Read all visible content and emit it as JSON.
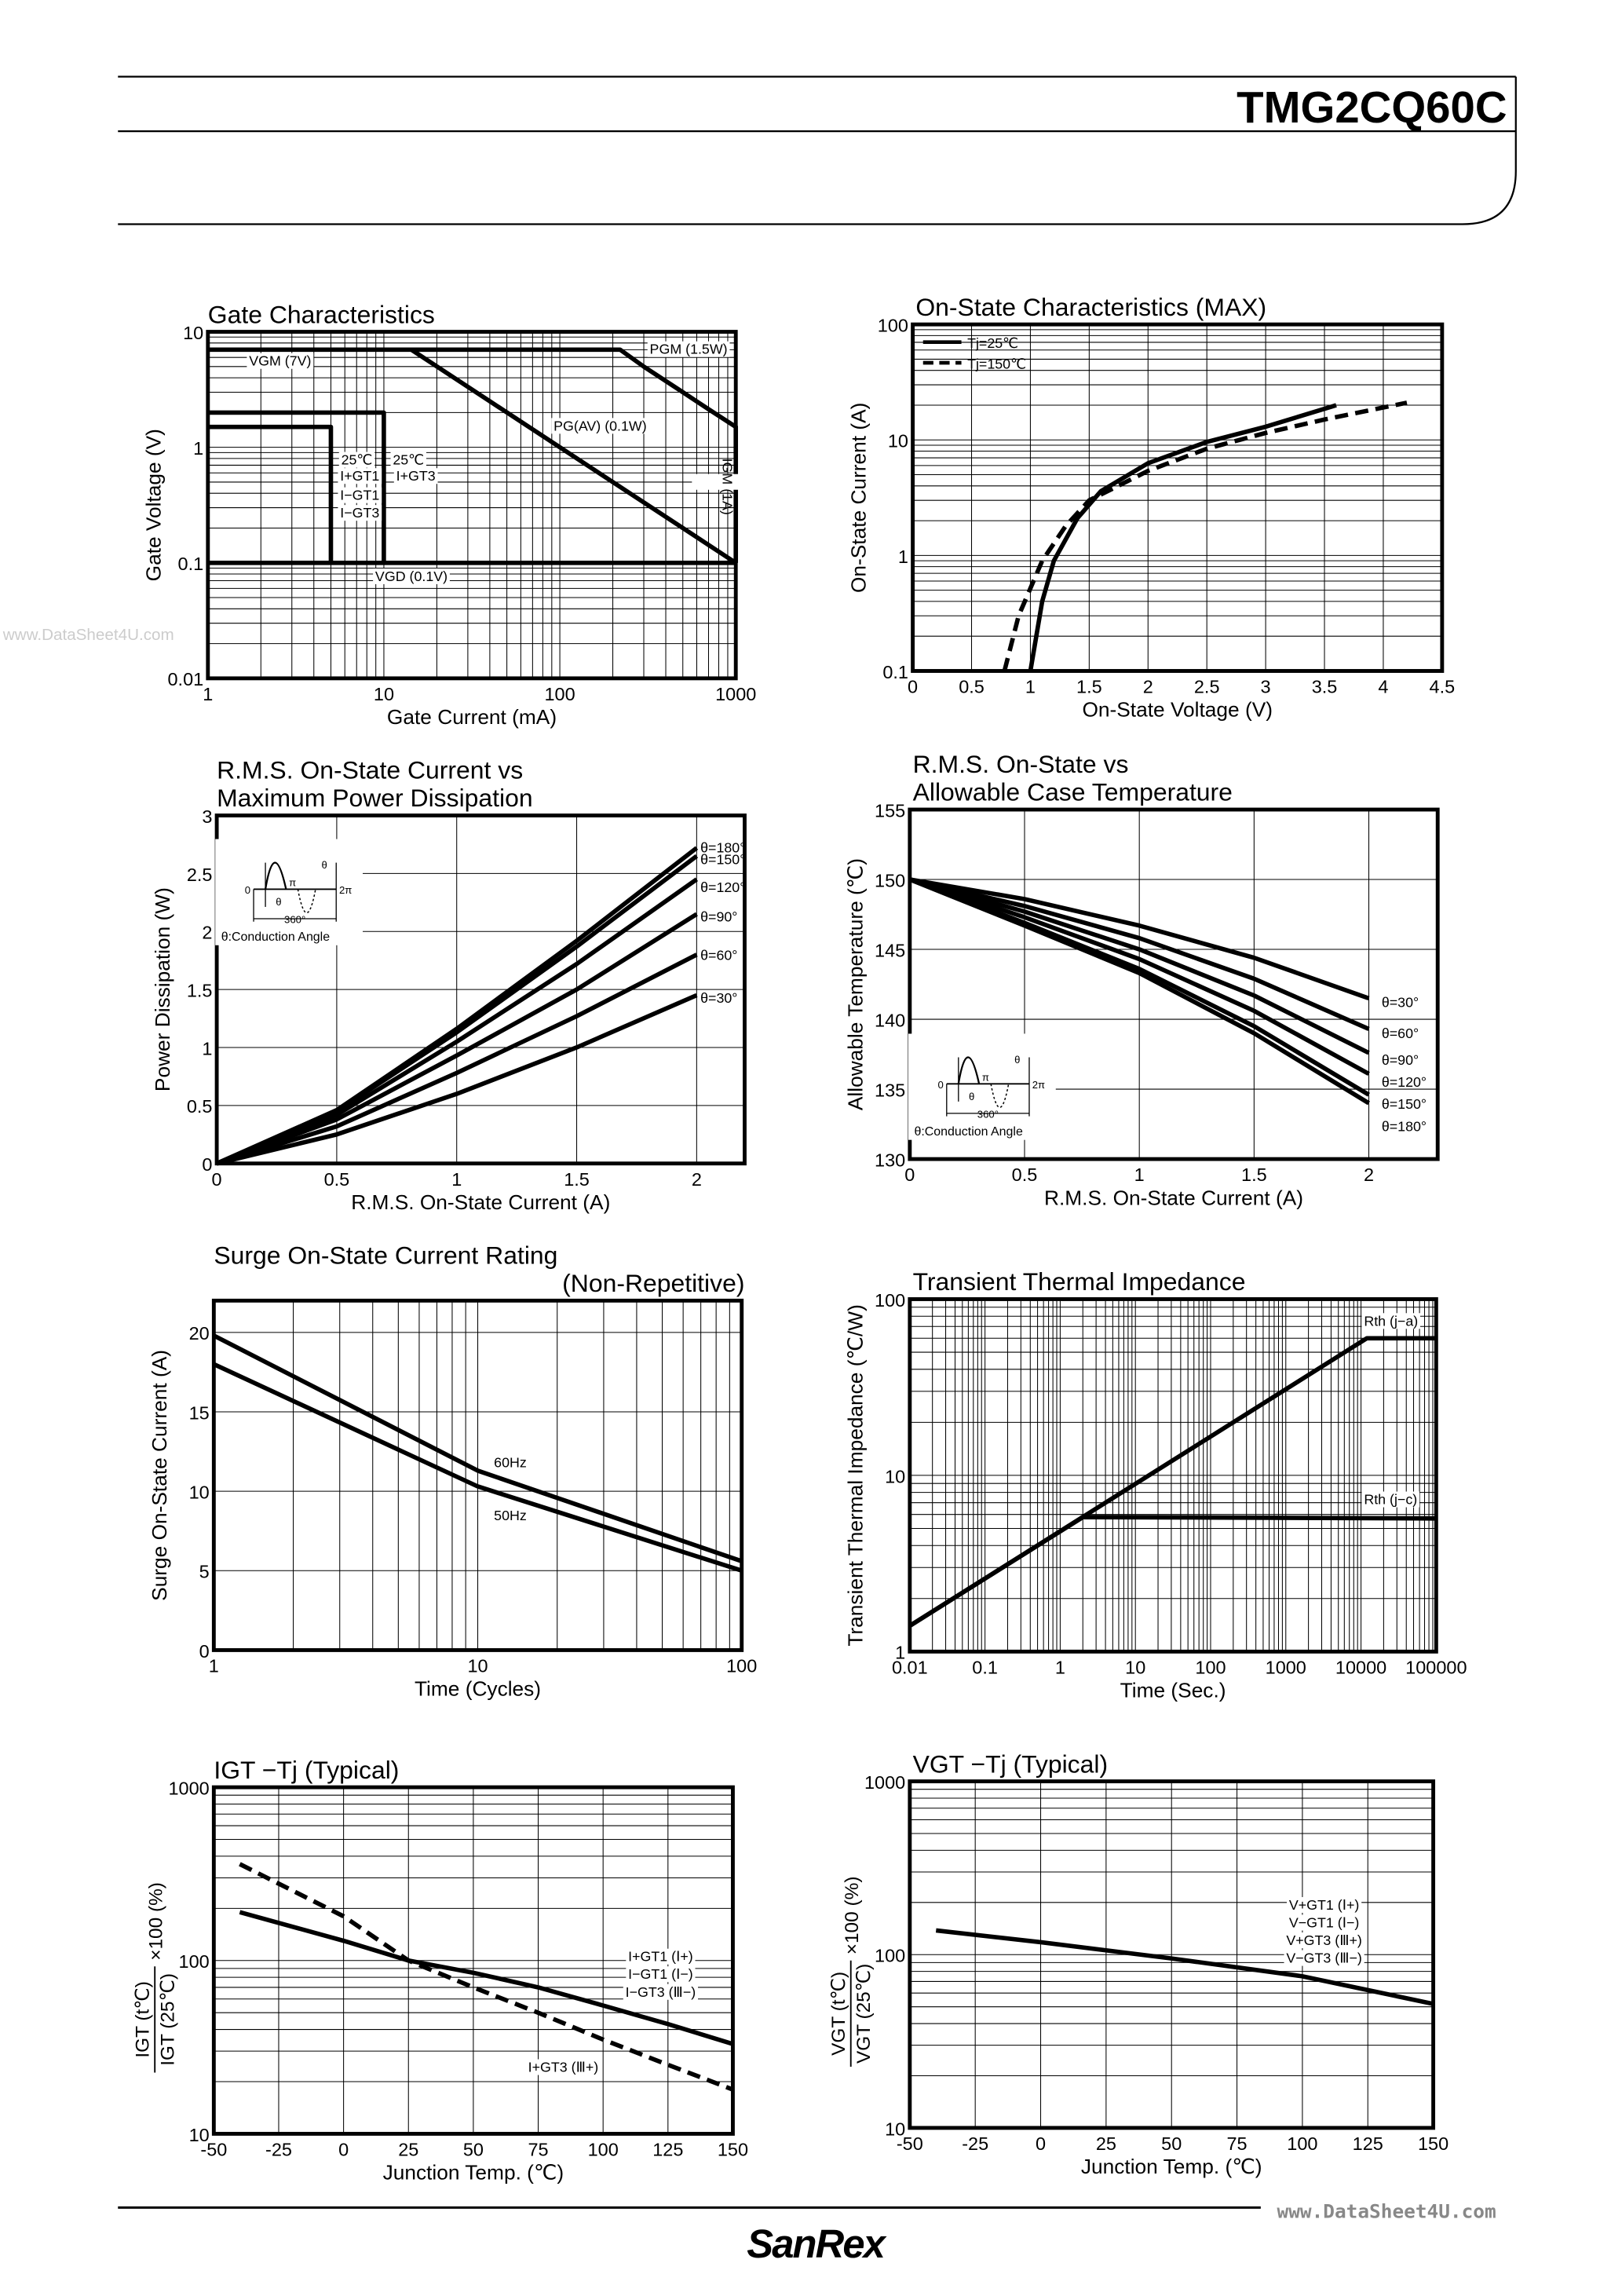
{
  "header": {
    "part_number": "TMG2CQ60C"
  },
  "footer": {
    "brand": "SanRex"
  },
  "watermarks": [
    "www.DataSheet4U.com",
    "www.DataSheet4U.com"
  ],
  "chart_data": [
    {
      "type": "line",
      "title": [
        "Gate Characteristics"
      ],
      "xlabel": "Gate Current (mA)",
      "ylabel": "Gate Voltage (V)",
      "xscale": "log",
      "yscale": "log",
      "xlim": [
        1,
        1000
      ],
      "ylim": [
        0.01,
        10
      ],
      "xticks": [
        "1",
        "10",
        "100",
        "1000"
      ],
      "yticks": [
        "0.01",
        "0.1",
        "1",
        "10"
      ],
      "grid": true,
      "series": [
        {
          "label": "VGM (7V) / PGM (1.5W) / IGM (1A)",
          "style": "solid",
          "points": [
            [
              1,
              7
            ],
            [
              220,
              7
            ],
            [
              300,
              5
            ],
            [
              500,
              3
            ],
            [
              700,
              2.14
            ],
            [
              1000,
              1.5
            ],
            [
              1000,
              0.1
            ]
          ]
        },
        {
          "label": "PG(AV) (0.1W)",
          "style": "solid",
          "points": [
            [
              14.3,
              7
            ],
            [
              1000,
              0.1
            ]
          ]
        },
        {
          "label": "VGD (0.1V)",
          "style": "solid",
          "points": [
            [
              1,
              0.1
            ],
            [
              1000,
              0.1
            ]
          ]
        },
        {
          "label": "I+GT1 / I-GT1 / I-GT3 25°C",
          "style": "solid",
          "points": [
            [
              1,
              1.5
            ],
            [
              5,
              1.5
            ],
            [
              5,
              0.1
            ]
          ]
        },
        {
          "label": "I+GT3 25°C",
          "style": "solid",
          "points": [
            [
              1,
              2
            ],
            [
              10,
              2
            ],
            [
              10,
              0.1
            ]
          ]
        }
      ],
      "annotations": [
        "VGM (7V)",
        "PGM (1.5W)",
        "PG(AV) (0.1W)",
        "IGM (1A)",
        "25℃",
        "25℃",
        "I+GT1",
        "I−GT1",
        "I−GT3",
        "I+GT3",
        "VGD (0.1V)"
      ]
    },
    {
      "type": "line",
      "title": [
        "On-State Characteristics (MAX)"
      ],
      "xlabel": "On-State Voltage (V)",
      "ylabel": "On-State Current (A)",
      "xscale": "linear",
      "yscale": "log",
      "xlim": [
        0,
        4.5
      ],
      "ylim": [
        0.1,
        100
      ],
      "xticks": [
        "0",
        "0.5",
        "1",
        "1.5",
        "2",
        "2.5",
        "3",
        "3.5",
        "4",
        "4.5"
      ],
      "yticks": [
        "0.1",
        "1",
        "10",
        "100"
      ],
      "xgrid": 0.5,
      "grid": true,
      "legend": "top-left",
      "series": [
        {
          "name": "Tj=25℃",
          "style": "solid",
          "points": [
            [
              1.0,
              0.1
            ],
            [
              1.1,
              0.4
            ],
            [
              1.2,
              0.9
            ],
            [
              1.4,
              2.1
            ],
            [
              1.6,
              3.6
            ],
            [
              2.0,
              6.3
            ],
            [
              2.5,
              9.6
            ],
            [
              3.0,
              13
            ],
            [
              3.6,
              20
            ]
          ]
        },
        {
          "name": "Tj=150℃",
          "style": "dashed",
          "points": [
            [
              0.78,
              0.1
            ],
            [
              0.9,
              0.3
            ],
            [
              1.1,
              0.9
            ],
            [
              1.3,
              1.8
            ],
            [
              1.5,
              3
            ],
            [
              2.0,
              5.4
            ],
            [
              2.5,
              8.4
            ],
            [
              3.0,
              11.5
            ],
            [
              3.5,
              15
            ],
            [
              4.2,
              21
            ]
          ]
        }
      ],
      "annotations": []
    },
    {
      "type": "line",
      "title": [
        "R.M.S. On-State Current vs",
        "Maximum Power Dissipation"
      ],
      "xlabel": "R.M.S. On-State Current (A)",
      "ylabel": "Power Dissipation (W)",
      "xscale": "linear",
      "yscale": "linear",
      "xlim": [
        0,
        2.2
      ],
      "ylim": [
        0,
        3
      ],
      "xticks": [
        "0",
        "0.5",
        "1",
        "1.5",
        "2"
      ],
      "yticks": [
        "0",
        "0.5",
        "1",
        "1.5",
        "2",
        "2.5",
        "3"
      ],
      "xgrid": 0.5,
      "ygrid": 0.5,
      "grid": true,
      "series": [
        {
          "name": "θ=180°",
          "style": "solid",
          "points": [
            [
              0,
              0
            ],
            [
              0.5,
              0.46
            ],
            [
              1,
              1.16
            ],
            [
              1.5,
              1.92
            ],
            [
              2,
              2.72
            ]
          ]
        },
        {
          "name": "θ=150°",
          "style": "solid",
          "points": [
            [
              0,
              0
            ],
            [
              0.5,
              0.45
            ],
            [
              1,
              1.13
            ],
            [
              1.5,
              1.87
            ],
            [
              2,
              2.65
            ]
          ]
        },
        {
          "name": "θ=120°",
          "style": "solid",
          "points": [
            [
              0,
              0
            ],
            [
              0.5,
              0.42
            ],
            [
              1,
              1.05
            ],
            [
              1.5,
              1.72
            ],
            [
              2,
              2.45
            ]
          ]
        },
        {
          "name": "θ=90°",
          "style": "solid",
          "points": [
            [
              0,
              0
            ],
            [
              0.5,
              0.38
            ],
            [
              1,
              0.93
            ],
            [
              1.5,
              1.5
            ],
            [
              2,
              2.15
            ]
          ]
        },
        {
          "name": "θ=60°",
          "style": "solid",
          "points": [
            [
              0,
              0
            ],
            [
              0.5,
              0.32
            ],
            [
              1,
              0.78
            ],
            [
              1.5,
              1.27
            ],
            [
              2,
              1.8
            ]
          ]
        },
        {
          "name": "θ=30°",
          "style": "solid",
          "points": [
            [
              0,
              0
            ],
            [
              0.5,
              0.25
            ],
            [
              1,
              0.6
            ],
            [
              1.5,
              1.0
            ],
            [
              2,
              1.45
            ]
          ]
        }
      ],
      "inset": {
        "caption": "θ:Conduction Angle",
        "period": "360°",
        "zero": "0",
        "pi": "π",
        "two_pi": "2π",
        "theta": "θ"
      },
      "annotations": []
    },
    {
      "type": "line",
      "title": [
        "R.M.S. On-State vs",
        "Allowable Case Temperature"
      ],
      "xlabel": "R.M.S. On-State Current (A)",
      "ylabel": "Allowable Temperature (℃)",
      "xscale": "linear",
      "yscale": "linear",
      "xlim": [
        0,
        2.3
      ],
      "ylim": [
        130,
        155
      ],
      "xticks": [
        "0",
        "0.5",
        "1",
        "1.5",
        "2"
      ],
      "yticks": [
        "130",
        "135",
        "140",
        "145",
        "150",
        "155"
      ],
      "xgrid": 0.5,
      "ygrid": 5,
      "grid": true,
      "series": [
        {
          "name": "θ=30°",
          "style": "solid",
          "points": [
            [
              0,
              150
            ],
            [
              0.5,
              148.6
            ],
            [
              1,
              146.7
            ],
            [
              1.5,
              144.4
            ],
            [
              2,
              141.5
            ]
          ]
        },
        {
          "name": "θ=60°",
          "style": "solid",
          "points": [
            [
              0,
              150
            ],
            [
              0.5,
              148.1
            ],
            [
              1,
              145.8
            ],
            [
              1.5,
              142.9
            ],
            [
              2,
              139.3
            ]
          ]
        },
        {
          "name": "θ=90°",
          "style": "solid",
          "points": [
            [
              0,
              150
            ],
            [
              0.5,
              147.7
            ],
            [
              1,
              145.0
            ],
            [
              1.5,
              141.7
            ],
            [
              2,
              137.6
            ]
          ]
        },
        {
          "name": "θ=120°",
          "style": "solid",
          "points": [
            [
              0,
              150
            ],
            [
              0.5,
              147.3
            ],
            [
              1,
              144.3
            ],
            [
              1.5,
              140.6
            ],
            [
              2,
              136.1
            ]
          ]
        },
        {
          "name": "θ=150°",
          "style": "solid",
          "points": [
            [
              0,
              150
            ],
            [
              0.5,
              146.9
            ],
            [
              1,
              143.6
            ],
            [
              1.5,
              139.5
            ],
            [
              2,
              134.6
            ]
          ]
        },
        {
          "name": "θ=180°",
          "style": "solid",
          "points": [
            [
              0,
              150
            ],
            [
              0.5,
              146.7
            ],
            [
              1,
              143.3
            ],
            [
              1.5,
              139.0
            ],
            [
              2,
              134.0
            ]
          ]
        }
      ],
      "inset": {
        "caption": "θ:Conduction Angle",
        "period": "360°",
        "zero": "0",
        "pi": "π",
        "two_pi": "2π",
        "theta": "θ"
      },
      "annotations": []
    },
    {
      "type": "line",
      "title": [
        "Surge On-State Current Rating",
        "(Non-Repetitive)"
      ],
      "xlabel": "Time (Cycles)",
      "ylabel": "Surge On-State Current (A)",
      "xscale": "log",
      "yscale": "linear",
      "xlim": [
        1,
        100
      ],
      "ylim": [
        0,
        22
      ],
      "xticks": [
        "1",
        "10",
        "100"
      ],
      "yticks": [
        "0",
        "5",
        "10",
        "15",
        "20"
      ],
      "ygrid": 5,
      "grid": true,
      "series": [
        {
          "name": "60Hz",
          "style": "solid",
          "points": [
            [
              1,
              19.8
            ],
            [
              10,
              11.3
            ],
            [
              100,
              5.6
            ]
          ]
        },
        {
          "name": "50Hz",
          "style": "solid",
          "points": [
            [
              1,
              18.0
            ],
            [
              10,
              10.3
            ],
            [
              100,
              5.0
            ]
          ]
        }
      ],
      "annotations": [
        "60Hz",
        "50Hz"
      ]
    },
    {
      "type": "line",
      "title": [
        "Transient Thermal Impedance"
      ],
      "xlabel": "Time (Sec.)",
      "ylabel": "Transient Thermal Impedance (℃/W)",
      "xscale": "log",
      "yscale": "log",
      "xlim": [
        0.01,
        100000
      ],
      "ylim": [
        1,
        100
      ],
      "xticks": [
        "0.01",
        "0.1",
        "1",
        "10",
        "100",
        "1000",
        "10000",
        "100000"
      ],
      "yticks": [
        "1",
        "10",
        "100"
      ],
      "grid": true,
      "series": [
        {
          "name": "Rth (j−a)",
          "style": "solid",
          "points": [
            [
              0.01,
              1.4
            ],
            [
              12000,
              60
            ],
            [
              100000,
              60
            ]
          ]
        },
        {
          "name": "Rth (j−c)",
          "style": "solid",
          "points": [
            [
              0.01,
              1.4
            ],
            [
              2,
              5.8
            ],
            [
              100000,
              5.7
            ]
          ]
        }
      ],
      "annotations": [
        "Rth (j−a)",
        "Rth (j−c)"
      ]
    },
    {
      "type": "line",
      "title": [
        "IGT −Tj (Typical)"
      ],
      "xlabel": "Junction Temp. (℃)",
      "ylabel": {
        "numerator": "IGT (t℃)",
        "denominator": "IGT (25℃)",
        "suffix": "×100 (%)"
      },
      "xscale": "linear",
      "yscale": "log",
      "xlim": [
        -50,
        150
      ],
      "ylim": [
        10,
        1000
      ],
      "xticks": [
        "-50",
        "-25",
        "0",
        "25",
        "50",
        "75",
        "100",
        "125",
        "150"
      ],
      "yticks": [
        "10",
        "100",
        "1000"
      ],
      "xgrid": 25,
      "grid": true,
      "series": [
        {
          "name": "I+GT1 (Ⅰ+) / I−GT1 (Ⅰ−) / I−GT3 (Ⅲ−)",
          "style": "solid",
          "points": [
            [
              -40,
              190
            ],
            [
              0,
              130
            ],
            [
              25,
              100
            ],
            [
              50,
              85
            ],
            [
              75,
              70
            ],
            [
              100,
              55
            ],
            [
              125,
              43
            ],
            [
              150,
              33
            ]
          ]
        },
        {
          "name": "I+GT3 (Ⅲ+)",
          "style": "dashed",
          "points": [
            [
              -40,
              360
            ],
            [
              0,
              180
            ],
            [
              25,
              100
            ],
            [
              50,
              70
            ],
            [
              75,
              50
            ],
            [
              100,
              35
            ],
            [
              125,
              25
            ],
            [
              150,
              18
            ]
          ]
        }
      ],
      "annotations": [
        "I+GT1 (Ⅰ+)",
        "I−GT1 (Ⅰ−)",
        "I−GT3 (Ⅲ−)",
        "I+GT3 (Ⅲ+)"
      ]
    },
    {
      "type": "line",
      "title": [
        "VGT −Tj (Typical)"
      ],
      "xlabel": "Junction Temp. (℃)",
      "ylabel": {
        "numerator": "VGT (t℃)",
        "denominator": "VGT (25℃)",
        "suffix": "×100 (%)"
      },
      "xscale": "linear",
      "yscale": "log",
      "xlim": [
        -50,
        150
      ],
      "ylim": [
        10,
        1000
      ],
      "xticks": [
        "-50",
        "-25",
        "0",
        "25",
        "50",
        "75",
        "100",
        "125",
        "150"
      ],
      "yticks": [
        "10",
        "100",
        "1000"
      ],
      "xgrid": 25,
      "grid": true,
      "series": [
        {
          "name": "V+GT1 (Ⅰ+) / V−GT1 (Ⅰ−) / V+GT3 (Ⅲ+) / V−GT3 (Ⅲ−)",
          "style": "solid",
          "points": [
            [
              -40,
              138
            ],
            [
              0,
              118
            ],
            [
              50,
              95
            ],
            [
              100,
              75
            ],
            [
              150,
              52
            ]
          ]
        }
      ],
      "annotations": [
        "V+GT1 (Ⅰ+)",
        "V−GT1 (Ⅰ−)",
        "V+GT3 (Ⅲ+)",
        "V−GT3 (Ⅲ−)"
      ]
    }
  ]
}
